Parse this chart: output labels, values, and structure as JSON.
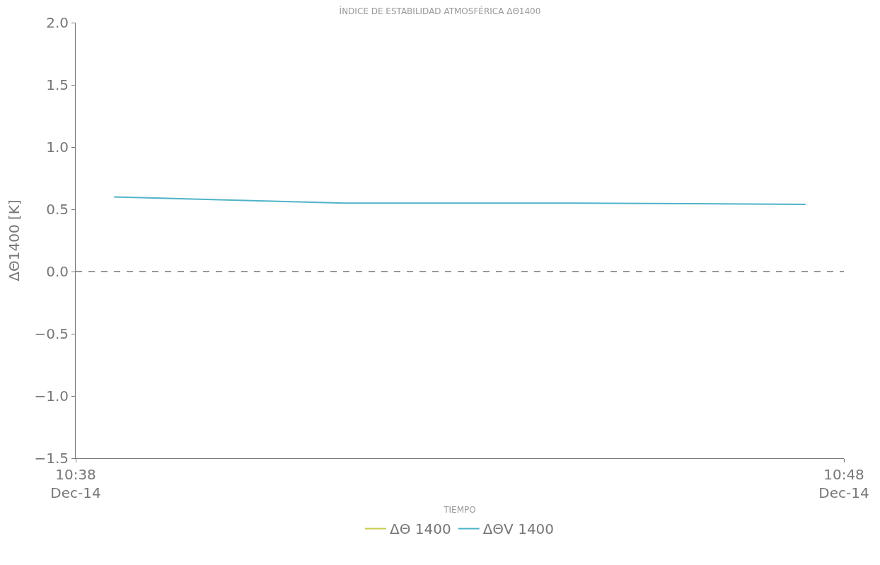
{
  "chart_data": {
    "type": "line",
    "title": "ÍNDICE DE ESTABILIDAD ATMOSFÉRICA ΔΘ1400",
    "xlabel": "TIEMPO",
    "ylabel": "ΔΘ1400 [K]",
    "x": [
      "--12-14T10:38:30",
      "--12-14T10:41:30",
      "--12-14T10:44:30",
      "--12-14T10:47:30"
    ],
    "series": [
      {
        "name": "ΔΘ 1400",
        "color": "#c8cc50",
        "values": [
          null,
          null,
          null,
          null
        ]
      },
      {
        "name": "ΔΘV 1400",
        "color": "#4fb3c8",
        "values": [
          0.6,
          0.55,
          0.55,
          0.54
        ]
      }
    ],
    "xlim": [
      "--12-14T10:38",
      "--12-14T10:48"
    ],
    "xticks": [
      {
        "value": "--12-14T10:38",
        "label": "10:38\nDec-14"
      },
      {
        "value": "--12-14T10:48",
        "label": "10:48\nDec-14"
      }
    ],
    "ylim": [
      -1.5,
      2.0
    ],
    "yticks": [
      {
        "value": -1.5,
        "label": "−1.5"
      },
      {
        "value": -1.0,
        "label": "−1.0"
      },
      {
        "value": -0.5,
        "label": "−0.5"
      },
      {
        "value": 0,
        "label": "0.0"
      },
      {
        "value": 0.5,
        "label": "0.5"
      },
      {
        "value": 1.0,
        "label": "1.0"
      },
      {
        "value": 1.5,
        "label": "1.5"
      },
      {
        "value": 2.0,
        "label": "2.0"
      }
    ],
    "ref_lines": [
      {
        "axis": "y",
        "value": 0,
        "color": "#777777",
        "line_style": "dashed"
      }
    ],
    "legend": "bottom",
    "line_style": "solid"
  }
}
